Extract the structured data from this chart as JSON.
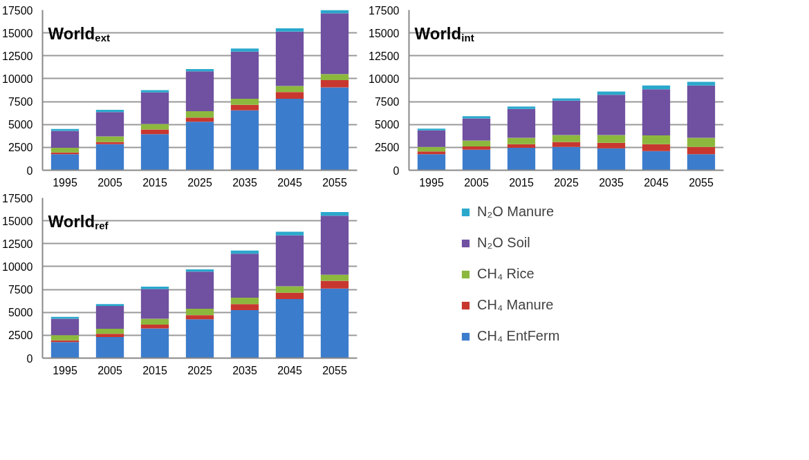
{
  "chart_data": [
    {
      "type": "bar",
      "title": "World$_{ext}$",
      "stacked": true,
      "categories": [
        "1995",
        "2005",
        "2015",
        "2025",
        "2035",
        "2045",
        "2055"
      ],
      "ylim": [
        0,
        17500
      ],
      "yticks": [
        0,
        2500,
        5000,
        7500,
        10000,
        12500,
        15000,
        17500
      ],
      "grid": "y",
      "legend": false,
      "series": [
        {
          "color": "#3c7ccc",
          "values": [
            1750,
            2850,
            3950,
            5300,
            6550,
            7800,
            9050
          ]
        },
        {
          "color": "#c8372f",
          "values": [
            200,
            250,
            500,
            450,
            600,
            750,
            800
          ]
        },
        {
          "color": "#8cb83e",
          "values": [
            500,
            600,
            600,
            700,
            650,
            650,
            650
          ]
        },
        {
          "color": "#7050a0",
          "values": [
            1850,
            2650,
            3450,
            4350,
            5150,
            5950,
            6650
          ]
        },
        {
          "color": "#2aa8cc",
          "values": [
            200,
            250,
            250,
            250,
            350,
            350,
            350
          ]
        }
      ]
    },
    {
      "type": "bar",
      "title": "World$_{int}$",
      "stacked": true,
      "categories": [
        "1995",
        "2005",
        "2015",
        "2025",
        "2035",
        "2045",
        "2055"
      ],
      "ylim": [
        0,
        17500
      ],
      "yticks": [
        0,
        2500,
        5000,
        7500,
        10000,
        12500,
        15000,
        17500
      ],
      "grid": "y",
      "legend": false,
      "series": [
        {
          "color": "#3c7ccc",
          "values": [
            1750,
            2250,
            2450,
            2550,
            2400,
            2100,
            1750
          ]
        },
        {
          "color": "#c8372f",
          "values": [
            300,
            350,
            400,
            550,
            600,
            750,
            800
          ]
        },
        {
          "color": "#8cb83e",
          "values": [
            500,
            650,
            700,
            750,
            850,
            950,
            1000
          ]
        },
        {
          "color": "#7050a0",
          "values": [
            1800,
            2400,
            3150,
            3750,
            4400,
            5050,
            5700
          ]
        },
        {
          "color": "#2aa8cc",
          "values": [
            200,
            250,
            250,
            250,
            350,
            400,
            400
          ]
        }
      ]
    },
    {
      "type": "bar",
      "title": "World$_{ref}$",
      "stacked": true,
      "categories": [
        "1995",
        "2005",
        "2015",
        "2025",
        "2035",
        "2045",
        "2055"
      ],
      "ylim": [
        0,
        17500
      ],
      "yticks": [
        0,
        2500,
        5000,
        7500,
        10000,
        12500,
        15000,
        17500
      ],
      "grid": "y",
      "legend": "right",
      "series": [
        {
          "name": "CH₄ EntFerm",
          "color": "#3c7ccc",
          "values": [
            1750,
            2300,
            3250,
            4250,
            5250,
            6450,
            7600
          ]
        },
        {
          "name": "CH₄ Manure",
          "color": "#c8372f",
          "values": [
            200,
            350,
            400,
            450,
            650,
            700,
            850
          ]
        },
        {
          "name": "CH₄ Rice",
          "color": "#8cb83e",
          "values": [
            550,
            550,
            650,
            700,
            700,
            700,
            650
          ]
        },
        {
          "name": "N₂O Soil",
          "color": "#7050a0",
          "values": [
            1800,
            2500,
            3250,
            4050,
            4800,
            5550,
            6450
          ]
        },
        {
          "name": "N₂O Manure",
          "color": "#2aa8cc",
          "values": [
            200,
            200,
            250,
            250,
            350,
            400,
            400
          ]
        }
      ]
    }
  ]
}
